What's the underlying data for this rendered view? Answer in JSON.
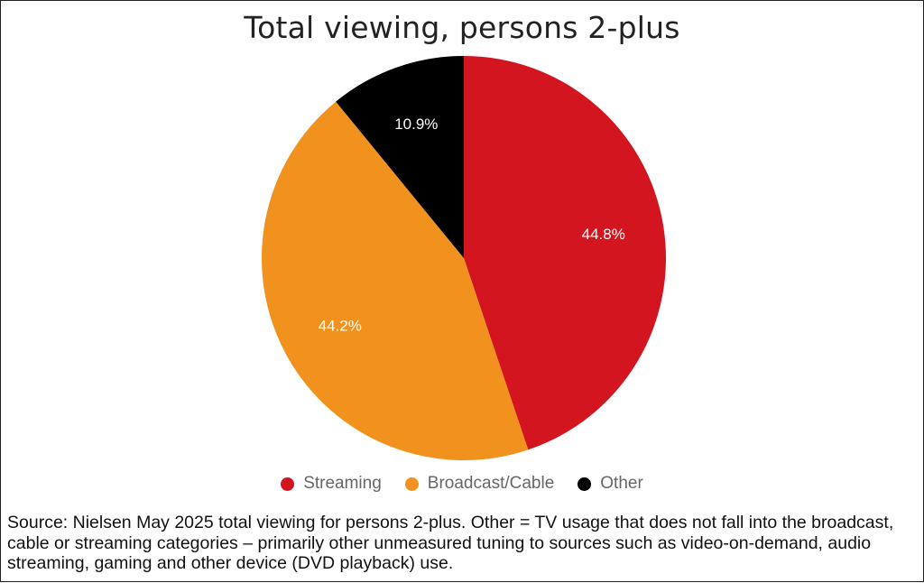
{
  "chart_data": {
    "type": "pie",
    "title": "Total viewing, persons 2-plus",
    "slices": [
      {
        "label": "Streaming",
        "value": 44.8,
        "display": "44.8%",
        "color": "#d2151e"
      },
      {
        "label": "Broadcast/Cable",
        "value": 44.2,
        "display": "44.2%",
        "color": "#f2921e"
      },
      {
        "label": "Other",
        "value": 10.9,
        "display": "10.9%",
        "color": "#000000"
      }
    ],
    "legend_position": "bottom"
  },
  "source_note": "Source: Nielsen May 2025 total viewing for persons 2-plus. Other = TV usage that does not fall into the broadcast, cable or streaming categories – primarily other unmeasured tuning to sources such as video-on-demand, audio streaming, gaming and other device (DVD playback) use."
}
